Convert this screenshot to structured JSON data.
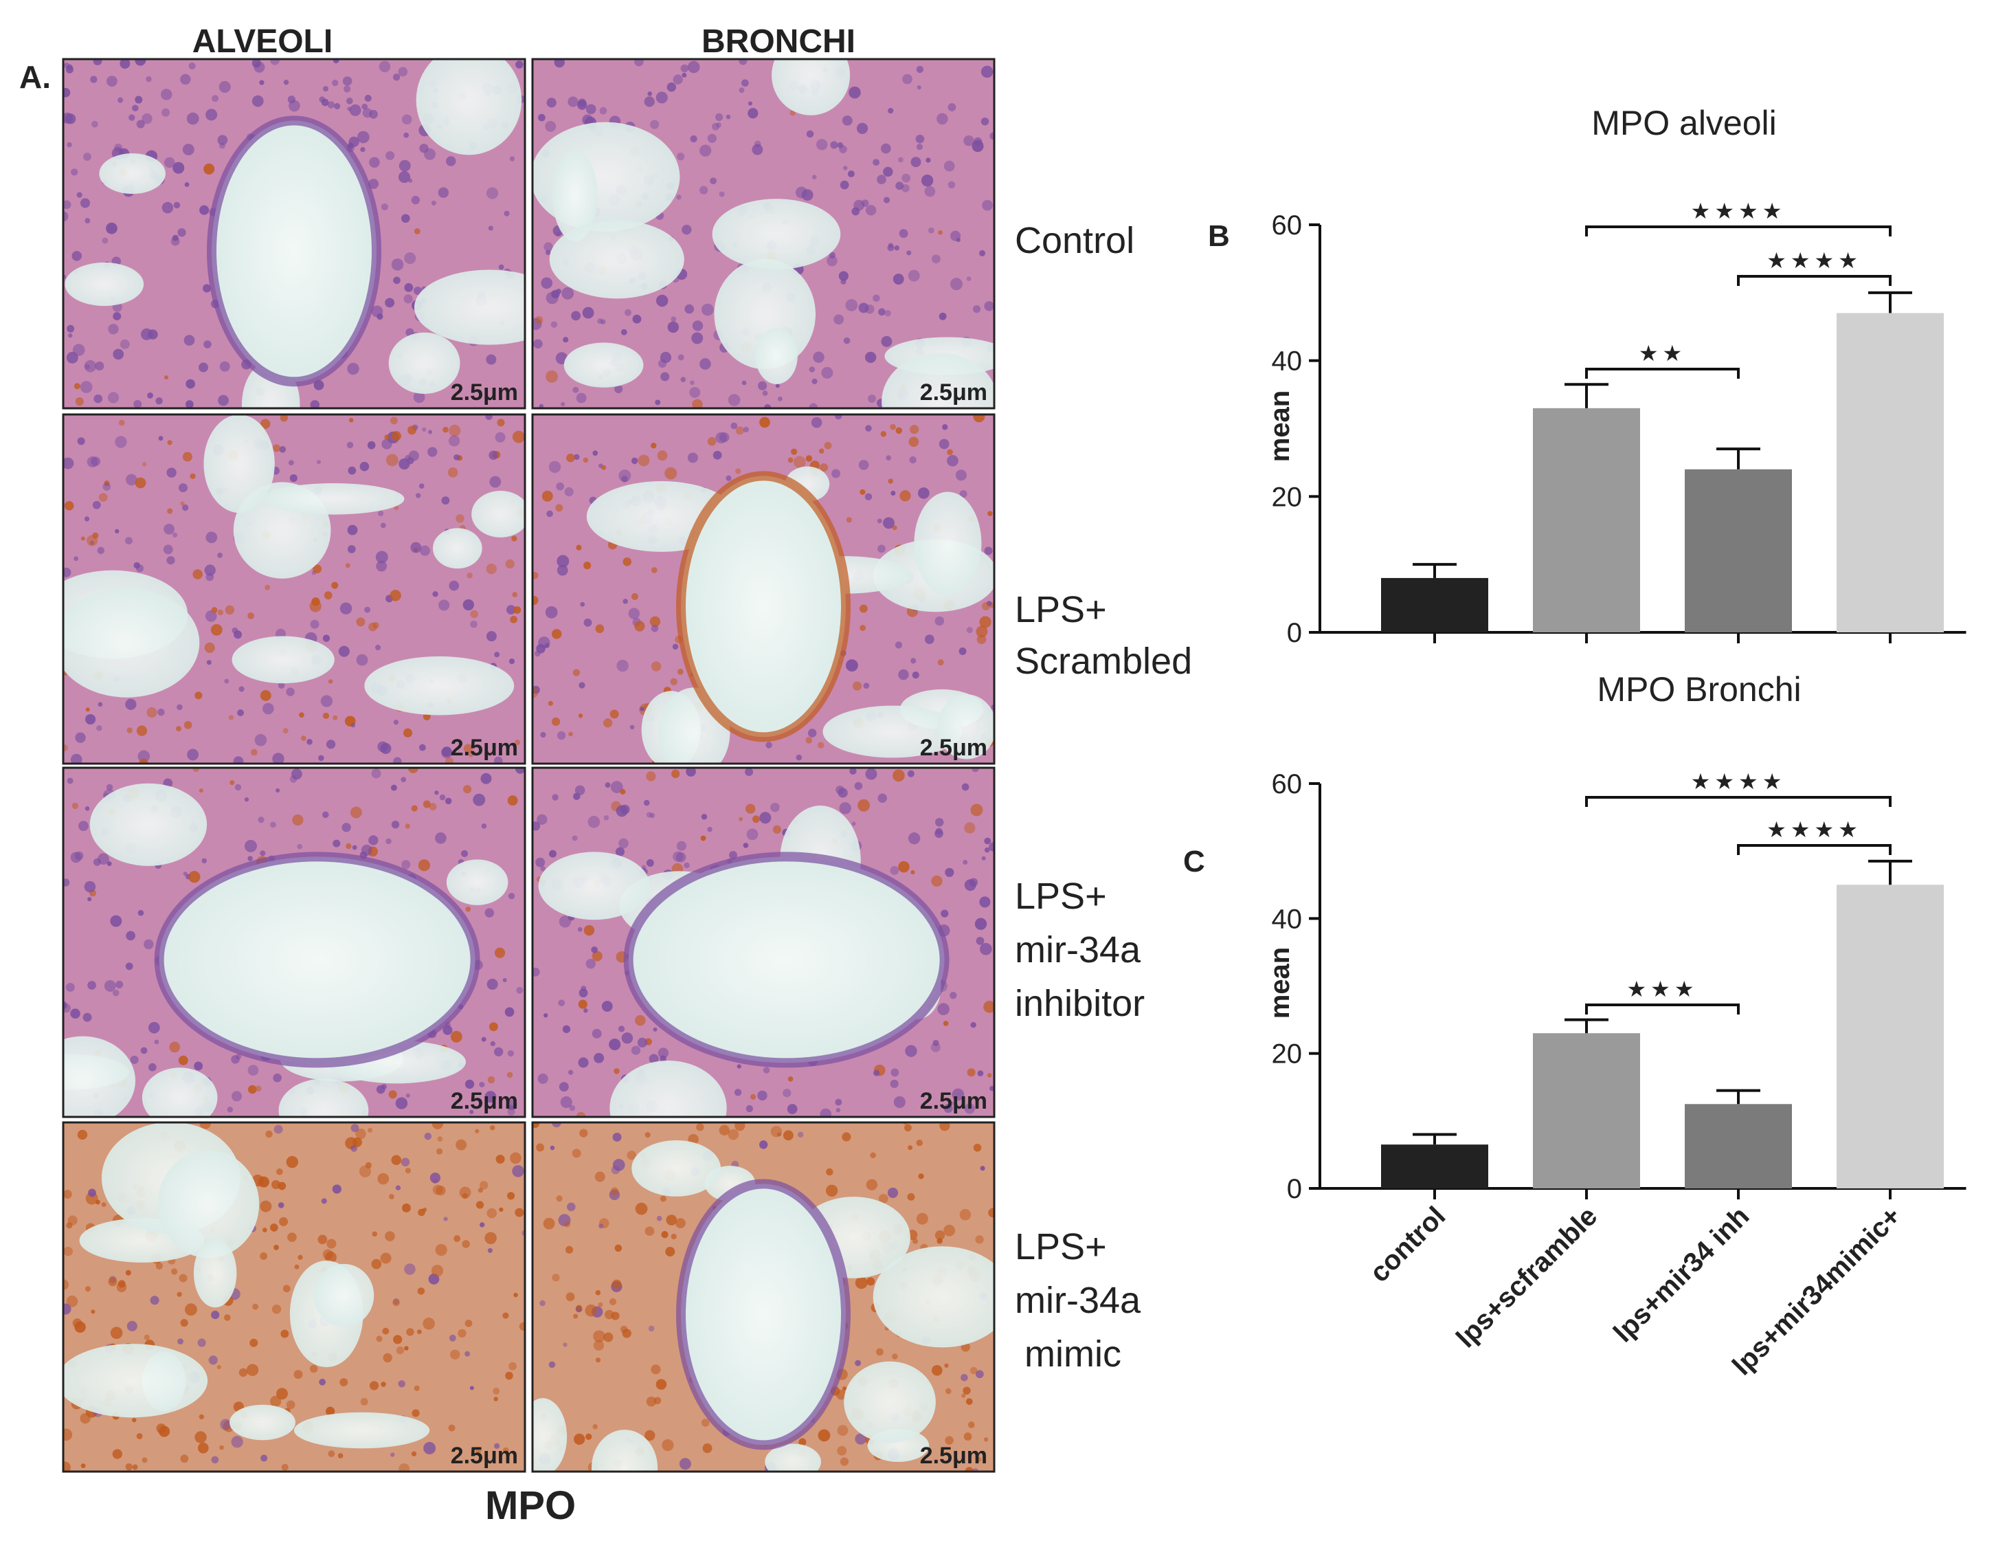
{
  "panel_a": {
    "letter": "A.",
    "columns": [
      "ALVEOLI",
      "BRONCHI"
    ],
    "rows": [
      {
        "lines": [
          "Control"
        ]
      },
      {
        "lines": [
          "LPS+",
          "Scrambled"
        ]
      },
      {
        "lines": [
          "LPS+",
          "mir-34a",
          "inhibitor"
        ]
      },
      {
        "lines": [
          "LPS+",
          "mir-34a",
          "mimic"
        ]
      }
    ],
    "scale_label": "2.5μm",
    "footer": "MPO"
  },
  "colors": {
    "control": "#222222",
    "lps_scramble": "#9a9a9a",
    "lps_inh": "#7b7b7b",
    "lps_mimic": "#d0d0d0",
    "tissue_pink": "#c889b0",
    "tissue_purple": "#7b4fa0",
    "stain_brown": "#c05a1e",
    "lumen": "#eaf3f2"
  },
  "chart_data": [
    {
      "type": "bar",
      "panel_letter": "B",
      "title": "MPO alveoli",
      "ylabel": "mean",
      "ylim": [
        0,
        60
      ],
      "yticks": [
        "0",
        "20",
        "40",
        "60"
      ],
      "categories": [
        "control",
        "lps+scframble",
        "lps+mir34 inh",
        "lps+mir34mimic+"
      ],
      "values": [
        8,
        33,
        24,
        47
      ],
      "errors": [
        2,
        3.5,
        3,
        3
      ],
      "significance": [
        {
          "from": 1,
          "to": 3,
          "label": "★★★★"
        },
        {
          "from": 2,
          "to": 3,
          "label": "★★★★"
        },
        {
          "from": 1,
          "to": 2,
          "label": "★★"
        }
      ]
    },
    {
      "type": "bar",
      "panel_letter": "C",
      "title": "MPO Bronchi",
      "ylabel": "mean",
      "ylim": [
        0,
        60
      ],
      "yticks": [
        "0",
        "20",
        "40",
        "60"
      ],
      "categories": [
        "control",
        "lps+scframble",
        "lps+mir34 inh",
        "lps+mir34mimic+"
      ],
      "values": [
        6.5,
        23,
        12.5,
        45
      ],
      "errors": [
        1.5,
        2,
        2,
        3.5
      ],
      "significance": [
        {
          "from": 1,
          "to": 3,
          "label": "★★★★"
        },
        {
          "from": 2,
          "to": 3,
          "label": "★★★★"
        },
        {
          "from": 1,
          "to": 2,
          "label": "★★★"
        }
      ]
    }
  ]
}
